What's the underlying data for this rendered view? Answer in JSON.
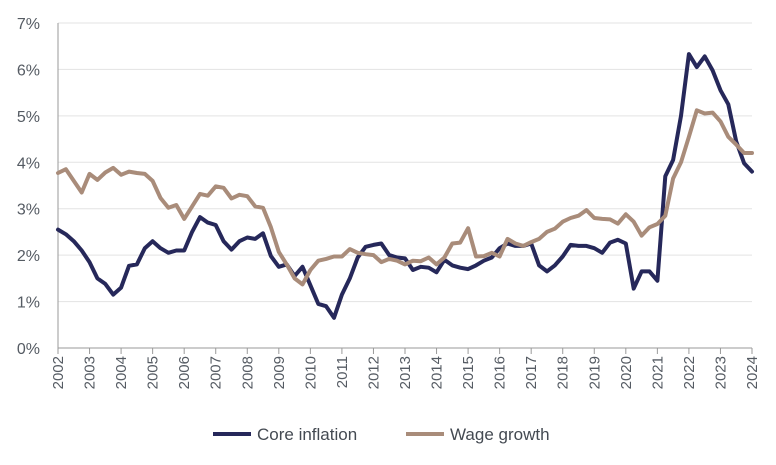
{
  "chart_data": {
    "type": "line",
    "title": "",
    "xlabel": "",
    "ylabel": "",
    "ylim": [
      0,
      7
    ],
    "xlim": [
      2002,
      2024
    ],
    "grid": true,
    "legend_position": "bottom",
    "y_ticks": [
      {
        "value": 0,
        "label": "0%"
      },
      {
        "value": 1,
        "label": "1%"
      },
      {
        "value": 2,
        "label": "2%"
      },
      {
        "value": 3,
        "label": "3%"
      },
      {
        "value": 4,
        "label": "4%"
      },
      {
        "value": 5,
        "label": "5%"
      },
      {
        "value": 6,
        "label": "6%"
      },
      {
        "value": 7,
        "label": "7%"
      }
    ],
    "x_ticks": [
      {
        "value": 2002,
        "label": "2002"
      },
      {
        "value": 2003,
        "label": "2003"
      },
      {
        "value": 2004,
        "label": "2004"
      },
      {
        "value": 2005,
        "label": "2005"
      },
      {
        "value": 2006,
        "label": "2006"
      },
      {
        "value": 2007,
        "label": "2007"
      },
      {
        "value": 2008,
        "label": "2008"
      },
      {
        "value": 2009,
        "label": "2009"
      },
      {
        "value": 2010,
        "label": "2010"
      },
      {
        "value": 2011,
        "label": "2011"
      },
      {
        "value": 2012,
        "label": "2012"
      },
      {
        "value": 2013,
        "label": "2013"
      },
      {
        "value": 2014,
        "label": "2014"
      },
      {
        "value": 2015,
        "label": "2015"
      },
      {
        "value": 2016,
        "label": "2016"
      },
      {
        "value": 2017,
        "label": "2017"
      },
      {
        "value": 2018,
        "label": "2018"
      },
      {
        "value": 2019,
        "label": "2019"
      },
      {
        "value": 2020,
        "label": "2020"
      },
      {
        "value": 2021,
        "label": "2021"
      },
      {
        "value": 2022,
        "label": "2022"
      },
      {
        "value": 2023,
        "label": "2023"
      },
      {
        "value": 2024,
        "label": "2024"
      }
    ],
    "series": [
      {
        "name": "Core inflation",
        "color": "#26285a",
        "x": [
          2002.0,
          2002.25,
          2002.5,
          2002.75,
          2003.0,
          2003.25,
          2003.5,
          2003.75,
          2004.0,
          2004.25,
          2004.5,
          2004.75,
          2005.0,
          2005.25,
          2005.5,
          2005.75,
          2006.0,
          2006.25,
          2006.5,
          2006.75,
          2007.0,
          2007.25,
          2007.5,
          2007.75,
          2008.0,
          2008.25,
          2008.5,
          2008.75,
          2009.0,
          2009.25,
          2009.5,
          2009.75,
          2010.0,
          2010.25,
          2010.5,
          2010.75,
          2011.0,
          2011.25,
          2011.5,
          2011.75,
          2012.0,
          2012.25,
          2012.5,
          2012.75,
          2013.0,
          2013.25,
          2013.5,
          2013.75,
          2014.0,
          2014.25,
          2014.5,
          2014.75,
          2015.0,
          2015.25,
          2015.5,
          2015.75,
          2016.0,
          2016.25,
          2016.5,
          2016.75,
          2017.0,
          2017.25,
          2017.5,
          2017.75,
          2018.0,
          2018.25,
          2018.5,
          2018.75,
          2019.0,
          2019.25,
          2019.5,
          2019.75,
          2020.0,
          2020.25,
          2020.5,
          2020.75,
          2021.0,
          2021.25,
          2021.5,
          2021.75,
          2022.0,
          2022.25,
          2022.5,
          2022.75,
          2023.0,
          2023.25,
          2023.5,
          2023.75,
          2024.0
        ],
        "values": [
          2.55,
          2.45,
          2.3,
          2.1,
          1.85,
          1.5,
          1.38,
          1.15,
          1.3,
          1.77,
          1.8,
          2.15,
          2.3,
          2.15,
          2.05,
          2.1,
          2.1,
          2.5,
          2.82,
          2.7,
          2.65,
          2.3,
          2.12,
          2.3,
          2.38,
          2.35,
          2.47,
          1.98,
          1.75,
          1.8,
          1.55,
          1.75,
          1.35,
          0.95,
          0.9,
          0.65,
          1.15,
          1.5,
          1.95,
          2.18,
          2.22,
          2.25,
          2.0,
          1.95,
          1.93,
          1.68,
          1.75,
          1.73,
          1.63,
          1.9,
          1.78,
          1.73,
          1.7,
          1.78,
          1.88,
          1.95,
          2.15,
          2.25,
          2.2,
          2.2,
          2.25,
          1.78,
          1.65,
          1.78,
          1.97,
          2.22,
          2.2,
          2.2,
          2.15,
          2.05,
          2.27,
          2.33,
          2.25,
          1.28,
          1.65,
          1.65,
          1.45,
          3.7,
          4.05,
          5.0,
          6.33,
          6.05,
          6.28,
          5.98,
          5.55,
          5.25,
          4.45,
          3.98,
          3.8
        ]
      },
      {
        "name": "Wage growth",
        "color": "#a98c7a",
        "x": [
          2002.0,
          2002.25,
          2002.5,
          2002.75,
          2003.0,
          2003.25,
          2003.5,
          2003.75,
          2004.0,
          2004.25,
          2004.5,
          2004.75,
          2005.0,
          2005.25,
          2005.5,
          2005.75,
          2006.0,
          2006.25,
          2006.5,
          2006.75,
          2007.0,
          2007.25,
          2007.5,
          2007.75,
          2008.0,
          2008.25,
          2008.5,
          2008.75,
          2009.0,
          2009.25,
          2009.5,
          2009.75,
          2010.0,
          2010.25,
          2010.5,
          2010.75,
          2011.0,
          2011.25,
          2011.5,
          2011.75,
          2012.0,
          2012.25,
          2012.5,
          2012.75,
          2013.0,
          2013.25,
          2013.5,
          2013.75,
          2014.0,
          2014.25,
          2014.5,
          2014.75,
          2015.0,
          2015.25,
          2015.5,
          2015.75,
          2016.0,
          2016.25,
          2016.5,
          2016.75,
          2017.0,
          2017.25,
          2017.5,
          2017.75,
          2018.0,
          2018.25,
          2018.5,
          2018.75,
          2019.0,
          2019.25,
          2019.5,
          2019.75,
          2020.0,
          2020.25,
          2020.5,
          2020.75,
          2021.0,
          2021.25,
          2021.5,
          2021.75,
          2022.0,
          2022.25,
          2022.5,
          2022.75,
          2023.0,
          2023.25,
          2023.5,
          2023.75,
          2024.0
        ],
        "values": [
          3.77,
          3.85,
          3.6,
          3.35,
          3.75,
          3.62,
          3.78,
          3.88,
          3.73,
          3.8,
          3.77,
          3.75,
          3.6,
          3.23,
          3.02,
          3.08,
          2.78,
          3.05,
          3.32,
          3.28,
          3.48,
          3.45,
          3.22,
          3.3,
          3.27,
          3.05,
          3.02,
          2.6,
          2.07,
          1.8,
          1.5,
          1.37,
          1.68,
          1.88,
          1.92,
          1.97,
          1.97,
          2.13,
          2.05,
          2.02,
          2.0,
          1.85,
          1.92,
          1.88,
          1.8,
          1.88,
          1.87,
          1.95,
          1.8,
          1.95,
          2.25,
          2.27,
          2.58,
          1.97,
          1.98,
          2.05,
          1.97,
          2.35,
          2.25,
          2.2,
          2.28,
          2.35,
          2.5,
          2.57,
          2.72,
          2.8,
          2.85,
          2.97,
          2.8,
          2.78,
          2.77,
          2.68,
          2.88,
          2.72,
          2.42,
          2.6,
          2.67,
          2.85,
          3.65,
          4.0,
          4.55,
          5.12,
          5.05,
          5.07,
          4.88,
          4.55,
          4.38,
          4.2,
          4.2
        ]
      }
    ]
  }
}
